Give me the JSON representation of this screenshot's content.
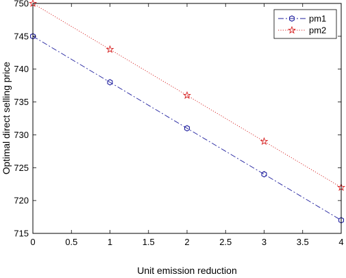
{
  "chart_data": {
    "type": "line",
    "title": "",
    "xlabel": "Unit emission reduction",
    "ylabel": "Optimal direct selling price",
    "xlim": [
      0,
      4
    ],
    "ylim": [
      715,
      750
    ],
    "xticks": [
      0,
      0.5,
      1,
      1.5,
      2,
      2.5,
      3,
      3.5,
      4
    ],
    "xtick_labels": [
      "0",
      "0.5",
      "1",
      "1.5",
      "2",
      "2.5",
      "3",
      "3.5",
      "4"
    ],
    "yticks": [
      715,
      720,
      725,
      730,
      735,
      740,
      745,
      750
    ],
    "ytick_labels": [
      "715",
      "720",
      "725",
      "730",
      "735",
      "740",
      "745",
      "750"
    ],
    "grid": false,
    "legend_position": "top-right",
    "series": [
      {
        "name": "pm1",
        "color": "#1f1f9e",
        "line_style": "dash-dot",
        "marker": "hexagon",
        "x": [
          0,
          1,
          2,
          3,
          4
        ],
        "y": [
          745,
          738,
          731,
          724,
          717
        ]
      },
      {
        "name": "pm2",
        "color": "#d62020",
        "line_style": "dotted",
        "marker": "star",
        "x": [
          0,
          1,
          2,
          3,
          4
        ],
        "y": [
          750,
          743,
          736,
          729,
          722
        ]
      }
    ]
  }
}
